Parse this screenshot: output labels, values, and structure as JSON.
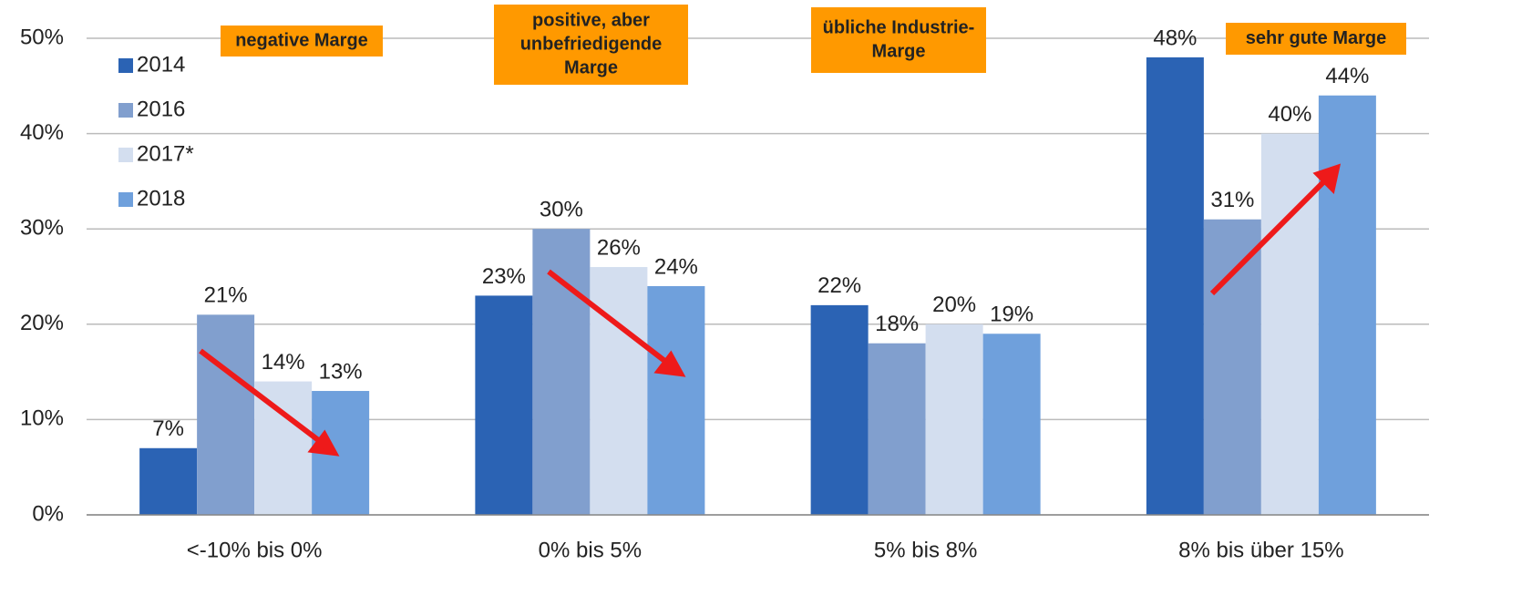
{
  "chart_data": {
    "type": "bar",
    "categories": [
      "<-10% bis 0%",
      "0% bis 5%",
      "5% bis 8%",
      "8% bis über 15%"
    ],
    "series": [
      {
        "name": "2014",
        "color": "#2b63b4",
        "values": [
          7,
          23,
          22,
          48
        ],
        "value_labels": [
          "7%",
          "23%",
          "22%",
          "48%"
        ]
      },
      {
        "name": "2016",
        "color": "#819fce",
        "values": [
          21,
          30,
          18,
          31
        ],
        "value_labels": [
          "21%",
          "30%",
          "18%",
          "31%"
        ]
      },
      {
        "name": "2017*",
        "color": "#d3deef",
        "values": [
          14,
          26,
          20,
          40
        ],
        "value_labels": [
          "14%",
          "26%",
          "20%",
          "40%"
        ]
      },
      {
        "name": "2018",
        "color": "#6fa0dc",
        "values": [
          13,
          24,
          19,
          44
        ],
        "value_labels": [
          "13%",
          "24%",
          "19%",
          "44%"
        ]
      }
    ],
    "ylim": [
      0,
      50
    ],
    "yticks": [
      {
        "value": 0,
        "label": "0%"
      },
      {
        "value": 10,
        "label": "10%"
      },
      {
        "value": 20,
        "label": "20%"
      },
      {
        "value": 30,
        "label": "30%"
      },
      {
        "value": 40,
        "label": "40%"
      },
      {
        "value": 50,
        "label": "50%"
      }
    ],
    "grid": true,
    "legend": "top-left",
    "annotations": [
      {
        "lines": [
          "negative Marge"
        ]
      },
      {
        "lines": [
          "positive, aber",
          "unbefriedigende",
          "Marge"
        ]
      },
      {
        "lines": [
          "übliche Industrie-",
          "Marge"
        ]
      },
      {
        "lines": [
          "sehr gute Marge"
        ]
      }
    ]
  }
}
